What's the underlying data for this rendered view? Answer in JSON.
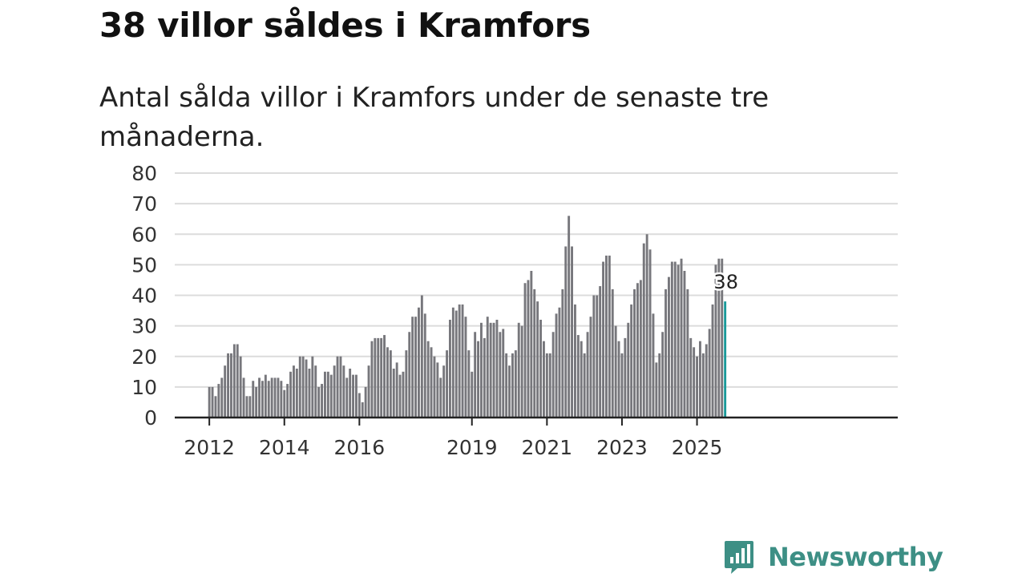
{
  "title": "38 villor såldes i Kramfors",
  "subtitle": "Antal sålda villor i Kramfors under de senaste tre månaderna.",
  "brand": {
    "name": "Newsworthy",
    "icon": "newsworthy-logo-icon",
    "color": "#3d8f85"
  },
  "chart_data": {
    "type": "bar",
    "title": "38 villor såldes i Kramfors",
    "subtitle": "Antal sålda villor i Kramfors under de senaste tre månaderna.",
    "xlabel": "",
    "ylabel": "",
    "ylim": [
      0,
      80
    ],
    "yticks": [
      0,
      10,
      20,
      30,
      40,
      50,
      60,
      70,
      80
    ],
    "xticks": [
      "2012",
      "2014",
      "2016",
      "2019",
      "2021",
      "2023",
      "2025"
    ],
    "grid": true,
    "bar_color": "#77777c",
    "highlight_color": "#1a9a9a",
    "highlight_label": "38",
    "values": [
      10,
      10,
      7,
      11,
      13,
      17,
      21,
      21,
      24,
      24,
      20,
      13,
      7,
      7,
      12,
      10,
      13,
      12,
      14,
      12,
      13,
      13,
      13,
      12,
      9,
      11,
      15,
      17,
      16,
      20,
      20,
      19,
      16,
      20,
      17,
      10,
      11,
      15,
      15,
      14,
      17,
      20,
      20,
      17,
      13,
      16,
      14,
      14,
      8,
      5,
      10,
      17,
      25,
      26,
      26,
      26,
      27,
      23,
      22,
      16,
      18,
      14,
      15,
      22,
      28,
      33,
      33,
      36,
      40,
      34,
      25,
      23,
      20,
      18,
      13,
      17,
      22,
      32,
      36,
      35,
      37,
      37,
      33,
      22,
      15,
      28,
      25,
      31,
      26,
      33,
      31,
      31,
      32,
      28,
      29,
      21,
      17,
      21,
      22,
      31,
      30,
      44,
      45,
      48,
      42,
      38,
      32,
      25,
      21,
      21,
      28,
      34,
      36,
      42,
      56,
      66,
      56,
      37,
      27,
      25,
      21,
      28,
      33,
      40,
      40,
      43,
      51,
      53,
      53,
      42,
      30,
      25,
      21,
      26,
      31,
      37,
      42,
      44,
      45,
      57,
      60,
      55,
      34,
      18,
      21,
      28,
      42,
      46,
      51,
      51,
      50,
      52,
      48,
      42,
      26,
      23,
      20,
      25,
      21,
      24,
      29,
      37,
      50,
      52,
      52,
      38
    ]
  }
}
